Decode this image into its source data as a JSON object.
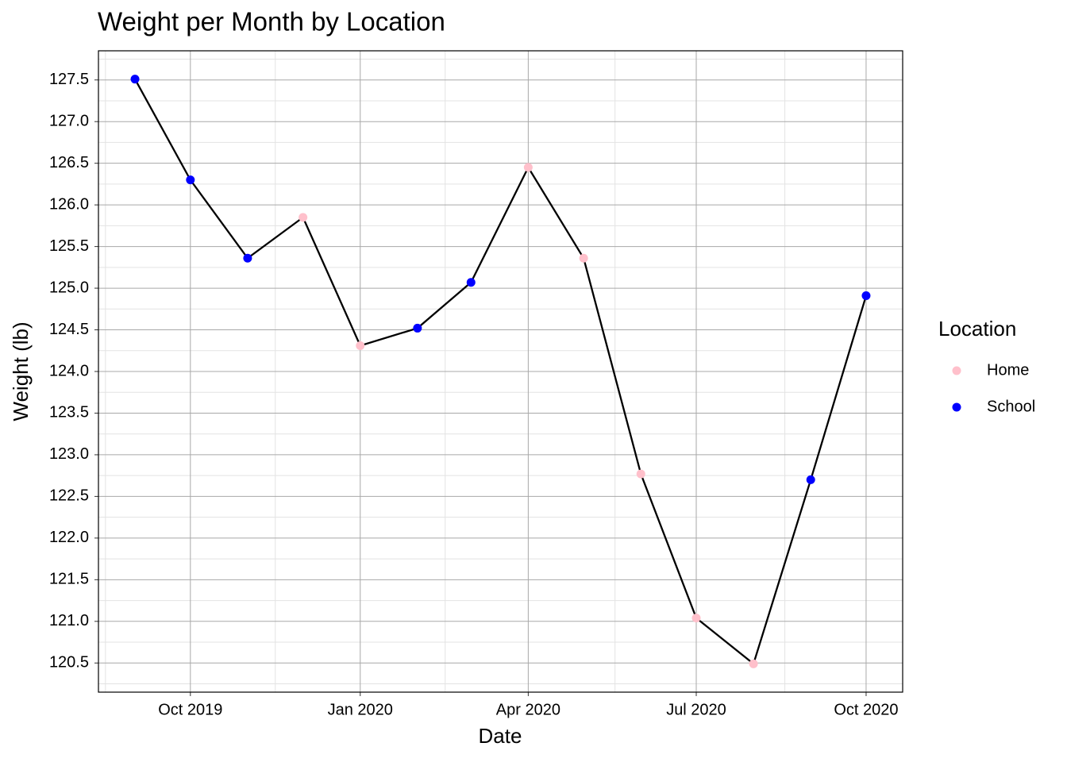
{
  "chart_data": {
    "type": "line",
    "title": "Weight per Month by Location",
    "x_label": "Date",
    "y_label": "Weight (lb)",
    "x": [
      "2019-09",
      "2019-10",
      "2019-11",
      "2019-12",
      "2020-01",
      "2020-02",
      "2020-03",
      "2020-04",
      "2020-05",
      "2020-06",
      "2020-07",
      "2020-08",
      "2020-09",
      "2020-10"
    ],
    "values": [
      127.51,
      126.3,
      125.36,
      125.85,
      124.31,
      124.52,
      125.07,
      126.45,
      125.36,
      122.77,
      121.04,
      120.49,
      122.7,
      124.91
    ],
    "locations": [
      "School",
      "School",
      "School",
      "Home",
      "Home",
      "School",
      "School",
      "Home",
      "Home",
      "Home",
      "Home",
      "Home",
      "School",
      "School"
    ],
    "line_color": "#000000",
    "legend": {
      "title": "Location",
      "entries": [
        {
          "name": "Home",
          "color": "pink"
        },
        {
          "name": "School",
          "color": "blue"
        }
      ]
    },
    "ylim": [
      120.15,
      127.85
    ],
    "yticks": [
      {
        "value": 120.5,
        "label": "120.5"
      },
      {
        "value": 121,
        "label": "121.0"
      },
      {
        "value": 121.5,
        "label": "121.5"
      },
      {
        "value": 122,
        "label": "122.0"
      },
      {
        "value": 122.5,
        "label": "122.5"
      },
      {
        "value": 123,
        "label": "123.0"
      },
      {
        "value": 123.5,
        "label": "123.5"
      },
      {
        "value": 124,
        "label": "124.0"
      },
      {
        "value": 124.5,
        "label": "124.5"
      },
      {
        "value": 125,
        "label": "125.0"
      },
      {
        "value": 125.5,
        "label": "125.5"
      },
      {
        "value": 126,
        "label": "126.0"
      },
      {
        "value": 126.5,
        "label": "126.5"
      },
      {
        "value": 127,
        "label": "127.0"
      },
      {
        "value": 127.5,
        "label": "127.5"
      }
    ],
    "xticks": [
      {
        "value": "2019-10",
        "label": "Oct 2019"
      },
      {
        "value": "2020-01",
        "label": "Jan 2020"
      },
      {
        "value": "2020-04",
        "label": "Apr 2020"
      },
      {
        "value": "2020-07",
        "label": "Jul 2020"
      },
      {
        "value": "2020-10",
        "label": "Oct 2020"
      }
    ],
    "grid": true,
    "minor_grid": true
  }
}
